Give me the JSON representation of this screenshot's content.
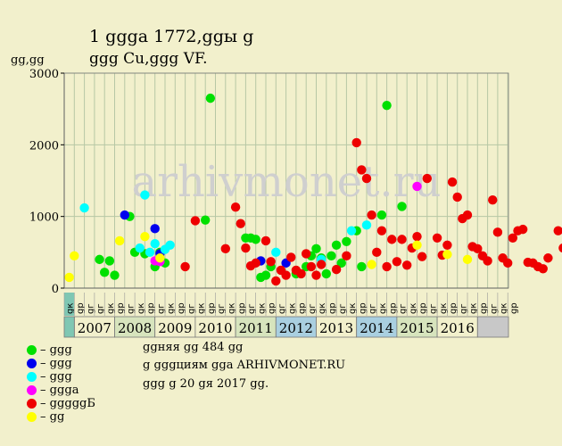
{
  "title_line1": "1 ցցցa 1772,ցցы ց",
  "title_line2": "ցցց Cu,ցցց VF.",
  "y_unit": "ցց,ցց",
  "watermark": "arhivmonet.ru",
  "legend": [
    {
      "label": "– ցցց",
      "color": "#00e000"
    },
    {
      "label": "– ցցց",
      "color": "#0000ee"
    },
    {
      "label": "– ցցց",
      "color": "#00ffff"
    },
    {
      "label": "– ցցցa",
      "color": "#ff00ff"
    },
    {
      "label": "– ցցցցցБ",
      "color": "#ee0000"
    },
    {
      "label": "– ցց",
      "color": "#ffff00"
    }
  ],
  "info": {
    "line1": "ցցняя ցց 484 ցց",
    "line2": "ց ցցցциям ցցa ARHIVMONET.RU",
    "line3": "ցցց ց 20 ցя 2017 ցց."
  },
  "chart_data": {
    "type": "scatter",
    "ylim": [
      0,
      3000
    ],
    "y_ticks": [
      0,
      1000,
      2000,
      3000
    ],
    "x_cells": [
      "ցк",
      "ցр",
      "ցг",
      "ցг",
      "ցк",
      "ցр",
      "ցг",
      "ցк",
      "ցр",
      "ցг",
      "ցк",
      "ցр",
      "ցг",
      "ցк",
      "ցр",
      "ցг",
      "ցк",
      "ցр",
      "ցг",
      "ցк",
      "ցр",
      "ցг",
      "ցк",
      "ցр",
      "ցг",
      "ցк",
      "ցр",
      "ցг",
      "ցк",
      "ցр",
      "ցг",
      "ցк",
      "ցр",
      "ցг",
      "ցк",
      "ցр",
      "ցг",
      "ցк",
      "ցр",
      "ցг",
      "ցк",
      "ցр",
      "ցг",
      "ցк",
      "ցр"
    ],
    "years": [
      "2007",
      "2008",
      "2009",
      "2010",
      "2011",
      "2012",
      "2013",
      "2014",
      "2015",
      "2016"
    ],
    "year_colors": [
      "#f2f0cc",
      "#d7e4bd",
      "#f2f0cc",
      "#f2f0cc",
      "#d7e4bd",
      "#a9cfe0",
      "#f2f0cc",
      "#a9cfe0",
      "#d7e4bd",
      "#f2f0cc"
    ],
    "grid": true,
    "series": [
      {
        "color": "#00e000",
        "points": [
          [
            3.5,
            400
          ],
          [
            4,
            220
          ],
          [
            4.5,
            380
          ],
          [
            5,
            180
          ],
          [
            6.5,
            1000
          ],
          [
            7,
            500
          ],
          [
            8,
            480
          ],
          [
            9,
            300
          ],
          [
            9.5,
            500
          ],
          [
            10,
            350
          ],
          [
            14,
            950
          ],
          [
            14.5,
            2650
          ],
          [
            18,
            700
          ],
          [
            18.5,
            700
          ],
          [
            19,
            680
          ],
          [
            19.5,
            150
          ],
          [
            20,
            180
          ],
          [
            20.5,
            300
          ],
          [
            23,
            200
          ],
          [
            24,
            300
          ],
          [
            24.5,
            450
          ],
          [
            25,
            550
          ],
          [
            25.5,
            420
          ],
          [
            26,
            200
          ],
          [
            26.5,
            450
          ],
          [
            27,
            600
          ],
          [
            27.5,
            350
          ],
          [
            28,
            650
          ],
          [
            29,
            800
          ],
          [
            29.5,
            300
          ],
          [
            31.5,
            1020
          ],
          [
            32,
            2550
          ],
          [
            33.5,
            1140
          ]
        ]
      },
      {
        "color": "#0000ee",
        "points": [
          [
            6,
            1020
          ],
          [
            9,
            830
          ],
          [
            9.5,
            480
          ],
          [
            19.5,
            380
          ],
          [
            22,
            350
          ]
        ]
      },
      {
        "color": "#00ffff",
        "points": [
          [
            2,
            1120
          ],
          [
            7.5,
            560
          ],
          [
            8,
            1300
          ],
          [
            8.5,
            500
          ],
          [
            9,
            620
          ],
          [
            10,
            540
          ],
          [
            10.5,
            600
          ],
          [
            21,
            500
          ],
          [
            25.5,
            400
          ],
          [
            28.5,
            800
          ],
          [
            30,
            880
          ]
        ]
      },
      {
        "color": "#ff00ff",
        "points": [
          [
            9,
            380
          ],
          [
            9.5,
            370
          ],
          [
            35,
            1420
          ]
        ]
      },
      {
        "color": "#ee0000",
        "points": [
          [
            12,
            300
          ],
          [
            13,
            940
          ],
          [
            16,
            550
          ],
          [
            17,
            1130
          ],
          [
            17.5,
            900
          ],
          [
            18,
            560
          ],
          [
            18.5,
            310
          ],
          [
            19,
            350
          ],
          [
            20,
            660
          ],
          [
            20.5,
            370
          ],
          [
            21,
            100
          ],
          [
            21.5,
            250
          ],
          [
            22,
            180
          ],
          [
            22.5,
            430
          ],
          [
            23,
            250
          ],
          [
            23.5,
            200
          ],
          [
            24,
            480
          ],
          [
            24.5,
            300
          ],
          [
            25,
            180
          ],
          [
            25.5,
            330
          ],
          [
            27,
            260
          ],
          [
            28,
            450
          ],
          [
            29,
            2030
          ],
          [
            29.5,
            1650
          ],
          [
            30,
            1530
          ],
          [
            30.5,
            1020
          ],
          [
            31,
            500
          ],
          [
            31.5,
            800
          ],
          [
            32,
            300
          ],
          [
            32.5,
            680
          ],
          [
            33,
            370
          ],
          [
            33.5,
            680
          ],
          [
            34,
            320
          ],
          [
            34.5,
            560
          ],
          [
            35,
            720
          ],
          [
            35.5,
            440
          ],
          [
            36,
            1530
          ],
          [
            37,
            700
          ],
          [
            37.5,
            460
          ],
          [
            38,
            600
          ],
          [
            38.5,
            1480
          ],
          [
            39,
            1270
          ],
          [
            39.5,
            970
          ],
          [
            40,
            1020
          ],
          [
            40.5,
            580
          ],
          [
            41,
            550
          ],
          [
            41.5,
            450
          ],
          [
            42,
            380
          ],
          [
            42.5,
            1230
          ],
          [
            43,
            780
          ],
          [
            43.5,
            420
          ],
          [
            44,
            350
          ],
          [
            44.5,
            700
          ],
          [
            45,
            800
          ],
          [
            45.5,
            820
          ],
          [
            46,
            360
          ],
          [
            46.5,
            350
          ],
          [
            47,
            300
          ],
          [
            47.5,
            270
          ],
          [
            48,
            420
          ],
          [
            49,
            800
          ],
          [
            49.5,
            560
          ],
          [
            50,
            970
          ],
          [
            50.5,
            290
          ]
        ]
      },
      {
        "color": "#ffff00",
        "points": [
          [
            0.5,
            150
          ],
          [
            1,
            450
          ],
          [
            5.5,
            660
          ],
          [
            8,
            720
          ],
          [
            9.5,
            420
          ],
          [
            30.5,
            330
          ],
          [
            35,
            600
          ],
          [
            38,
            470
          ],
          [
            40,
            400
          ]
        ]
      }
    ]
  }
}
